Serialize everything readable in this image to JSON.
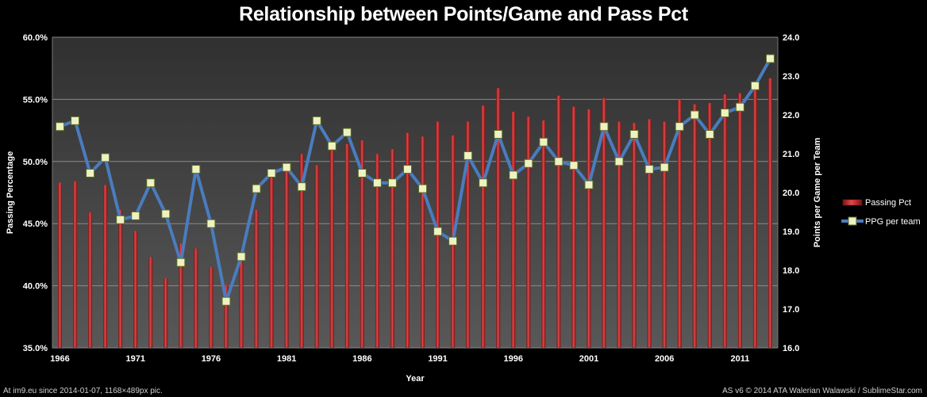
{
  "chart_data": {
    "type": "bar",
    "title": "Relationship between Points/Game and Pass Pct",
    "xlabel": "Year",
    "ylabel": "Passing Percentage",
    "y2label": "Points per Game per Team",
    "x": [
      1966,
      1967,
      1968,
      1969,
      1970,
      1971,
      1972,
      1973,
      1974,
      1975,
      1976,
      1977,
      1978,
      1979,
      1980,
      1981,
      1982,
      1983,
      1984,
      1985,
      1986,
      1987,
      1988,
      1989,
      1990,
      1991,
      1992,
      1993,
      1994,
      1995,
      1996,
      1997,
      1998,
      1999,
      2000,
      2001,
      2002,
      2003,
      2004,
      2005,
      2006,
      2007,
      2008,
      2009,
      2010,
      2011,
      2012,
      2013
    ],
    "x_tick_labels": [
      "1966",
      "1971",
      "1976",
      "1981",
      "1986",
      "1991",
      "1996",
      "2001",
      "2006",
      "2011"
    ],
    "x_tick_years": [
      1966,
      1971,
      1976,
      1981,
      1986,
      1991,
      1996,
      2001,
      2006,
      2011
    ],
    "ylim": [
      35,
      60
    ],
    "y_ticks": [
      "35.0%",
      "40.0%",
      "45.0%",
      "50.0%",
      "55.0%",
      "60.0%"
    ],
    "y2lim": [
      16,
      24
    ],
    "y2_ticks": [
      "16.0",
      "17.0",
      "18.0",
      "19.0",
      "20.0",
      "21.0",
      "22.0",
      "23.0",
      "24.0"
    ],
    "series": [
      {
        "name": "Passing Pct",
        "type": "bar",
        "axis": "left",
        "color": "#c0282a",
        "values": [
          48.3,
          48.4,
          45.9,
          48.1,
          46.1,
          44.4,
          42.3,
          40.6,
          43.4,
          43.0,
          41.5,
          40.1,
          42.2,
          46.1,
          49.1,
          49.9,
          50.6,
          49.7,
          51.1,
          51.4,
          51.7,
          50.6,
          51.0,
          52.3,
          52.0,
          53.2,
          52.1,
          53.2,
          54.5,
          55.9,
          54.0,
          53.6,
          53.3,
          55.3,
          54.4,
          54.2,
          55.1,
          53.2,
          53.1,
          53.4,
          53.2,
          55.0,
          54.6,
          54.7,
          55.4,
          55.5,
          56.4,
          56.7
        ]
      },
      {
        "name": "PPG per team",
        "type": "line",
        "axis": "right",
        "color": "#4a7cbf",
        "values": [
          21.7,
          21.85,
          20.5,
          20.9,
          19.3,
          19.4,
          20.25,
          19.45,
          18.2,
          20.6,
          19.2,
          17.2,
          18.35,
          20.1,
          20.5,
          20.65,
          20.15,
          21.85,
          21.2,
          21.55,
          20.5,
          20.25,
          20.25,
          20.6,
          20.1,
          19.0,
          18.75,
          20.95,
          20.25,
          21.5,
          20.45,
          20.75,
          21.3,
          20.8,
          20.7,
          20.2,
          21.7,
          20.8,
          21.5,
          20.6,
          20.65,
          21.7,
          22.0,
          21.5,
          22.05,
          22.2,
          22.75,
          23.45
        ]
      }
    ],
    "legend_position": "right",
    "grid": true
  },
  "footer": {
    "left": "At im9.eu  since 2014-01-07, 1168×489px pic.",
    "right": "AS v6 © 2014 ATA Walerian Walawski / SublimeStar.com"
  }
}
